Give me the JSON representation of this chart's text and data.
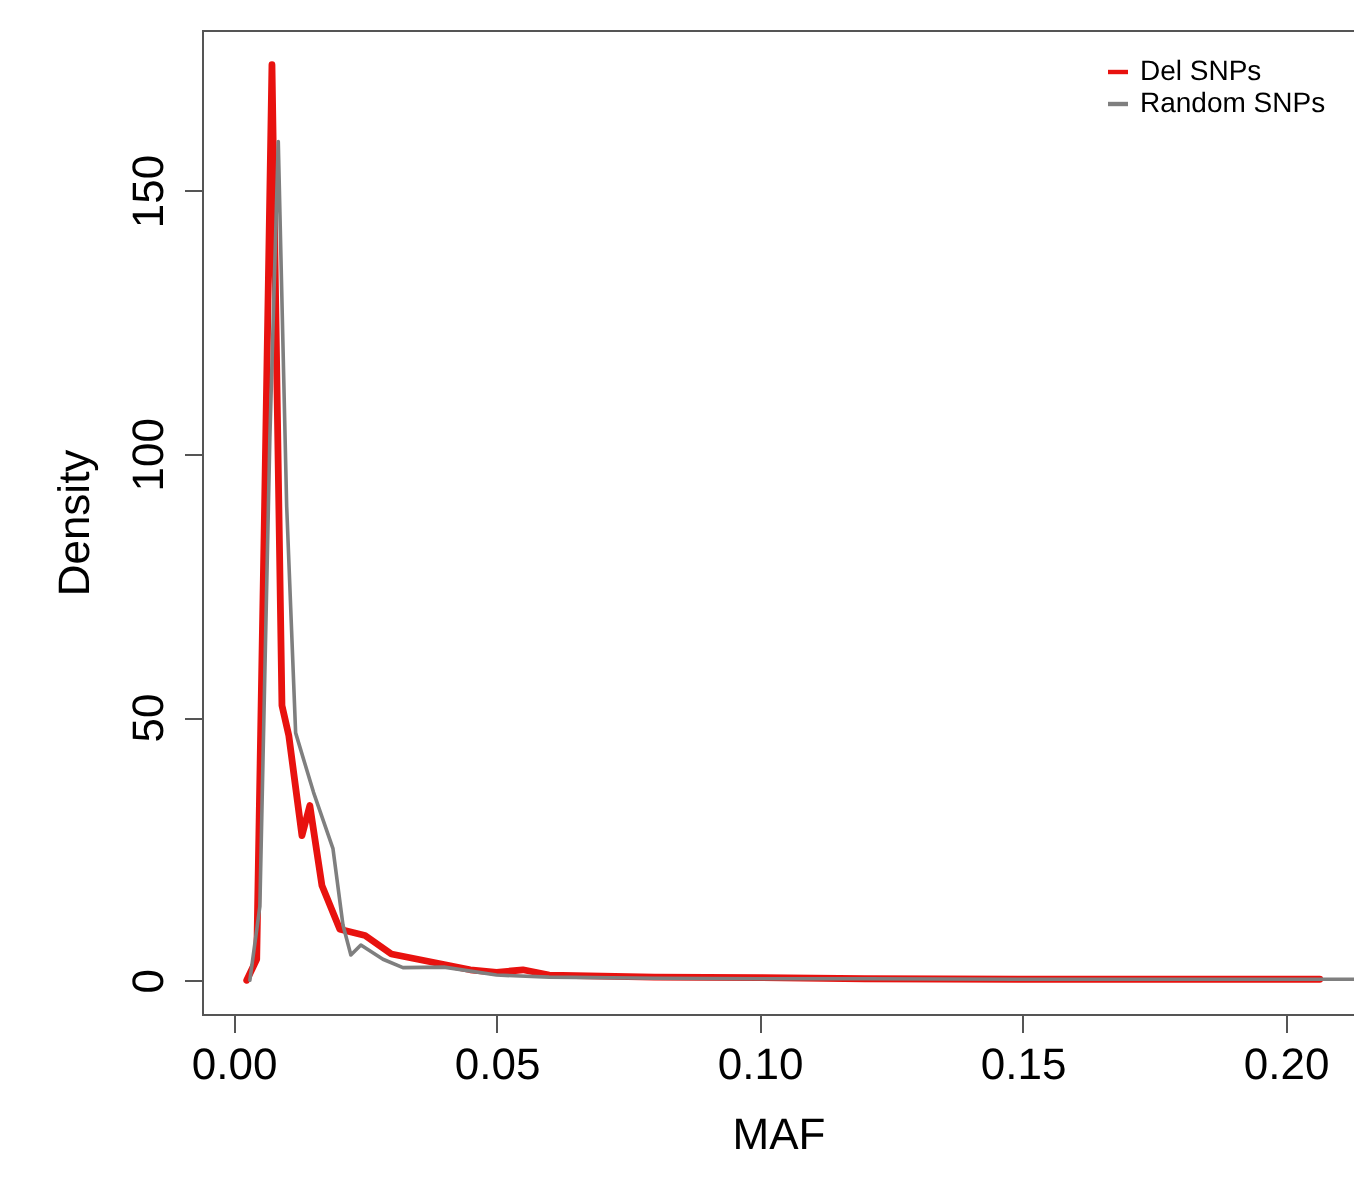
{
  "chart_data": {
    "type": "line",
    "xlabel": "MAF",
    "ylabel": "Density",
    "xlim": [
      -0.006,
      0.213
    ],
    "ylim": [
      -6.4,
      180.5
    ],
    "xticks": [
      {
        "value": 0,
        "label": "0.00"
      },
      0.05,
      {
        "value": 0.1,
        "label": "0.10"
      },
      0.15,
      {
        "value": 0.2,
        "label": "0.20"
      }
    ],
    "yticks": [
      0,
      50,
      100,
      150
    ],
    "grid": false,
    "legend": "top right",
    "marker": "none",
    "line_style": "solid",
    "series": [
      {
        "name": "Del SNPs",
        "color": "#e8120f",
        "x": [
          0.0025,
          0.0044,
          0.0059,
          0.0073,
          0.0092,
          0.0105,
          0.013,
          0.0145,
          0.0168,
          0.0202,
          0.025,
          0.03,
          0.035,
          0.04,
          0.045,
          0.05,
          0.055,
          0.06,
          0.07,
          0.08,
          0.1,
          0.12,
          0.15,
          0.18,
          0.2065
        ],
        "values": [
          0,
          4,
          90,
          173.9,
          52.2,
          46.5,
          27.5,
          33.2,
          18,
          9.7,
          8.5,
          5,
          4,
          3,
          2,
          1.5,
          2,
          1,
          0.8,
          0.6,
          0.5,
          0.3,
          0.2,
          0.2,
          0.2
        ]
      },
      {
        "name": "Random SNPs",
        "color": "#7f7f7f",
        "x": [
          0.0031,
          0.005,
          0.0069,
          0.0085,
          0.0101,
          0.0118,
          0.0152,
          0.0189,
          0.0208,
          0.0223,
          0.0242,
          0.0284,
          0.0322,
          0.04,
          0.05,
          0.06,
          0.08,
          0.1,
          0.12,
          0.15,
          0.18,
          0.213
        ],
        "values": [
          0,
          14,
          103,
          159.3,
          90,
          47,
          35.7,
          25,
          10.5,
          4.8,
          6.7,
          4,
          2.4,
          2.5,
          1,
          0.6,
          0.4,
          0.3,
          0.3,
          0.2,
          0.2,
          0.2
        ]
      }
    ]
  }
}
